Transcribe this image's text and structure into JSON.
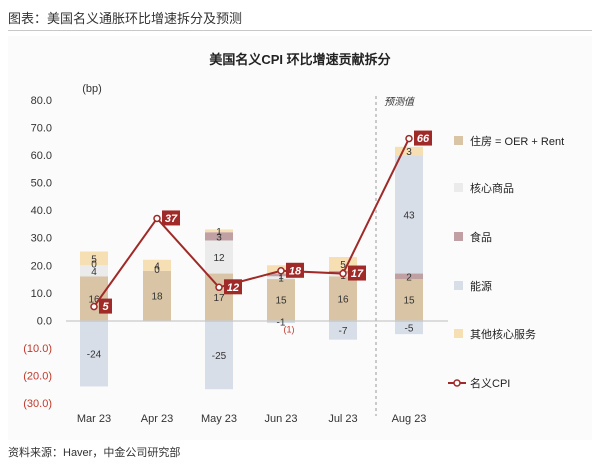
{
  "header": {
    "title": "图表：美国名义通胀环比增速拆分及预测"
  },
  "source": "资料来源：Haver，中金公司研究部",
  "chart_data": {
    "type": "bar",
    "stacked": true,
    "title": "美国名义CPI 环比增速贡献拆分",
    "unit_label": "(bp)",
    "annotation": "预测值",
    "categories": [
      "Mar 23",
      "Apr 23",
      "May 23",
      "Jun 23",
      "Jul 23",
      "Aug 23"
    ],
    "y_ticks": [
      "80.0",
      "70.0",
      "60.0",
      "50.0",
      "40.0",
      "30.0",
      "20.0",
      "10.0",
      "0.0",
      "(10.0)",
      "(20.0)",
      "(30.0)"
    ],
    "ylim": [
      -30,
      80
    ],
    "series": [
      {
        "name": "住房 = OER + Rent",
        "color": "#d9c4a5",
        "values": [
          16,
          18,
          17,
          15,
          16,
          15
        ],
        "labels": [
          "16",
          "18",
          "17",
          "15",
          "16",
          "15"
        ]
      },
      {
        "name": "核心商品",
        "color": "#ebebeb",
        "values": [
          4,
          0,
          12,
          1,
          1,
          0
        ],
        "labels": [
          "4",
          "0",
          "12",
          "1",
          "1",
          ""
        ]
      },
      {
        "name": "食品",
        "color": "#c1a0a4",
        "values": [
          0,
          0,
          3,
          1,
          1,
          2
        ],
        "labels": [
          "0",
          "",
          "3",
          "1",
          "1",
          "2"
        ]
      },
      {
        "name": "能源",
        "color": "#d8dee8",
        "values": [
          -24,
          0,
          -25,
          -1,
          -7,
          43
        ],
        "labels": [
          "-24",
          "",
          "-25",
          "-1",
          "-7",
          "43"
        ]
      },
      {
        "name": "其他核心服务",
        "color": "#f6dfb2",
        "values": [
          5,
          4,
          1,
          3,
          5,
          3
        ],
        "labels": [
          "5",
          "4",
          "1",
          "",
          "5",
          "3"
        ]
      }
    ],
    "aug_energy_negative": {
      "value": -5,
      "label": "-5"
    },
    "line": {
      "name": "名义CPI",
      "color": "#9f2a28",
      "values": [
        5,
        37,
        12,
        18,
        17,
        66
      ],
      "labels": [
        "5",
        "37",
        "12",
        "18",
        "17",
        "66"
      ]
    },
    "jun_residual_label": "(1)"
  }
}
